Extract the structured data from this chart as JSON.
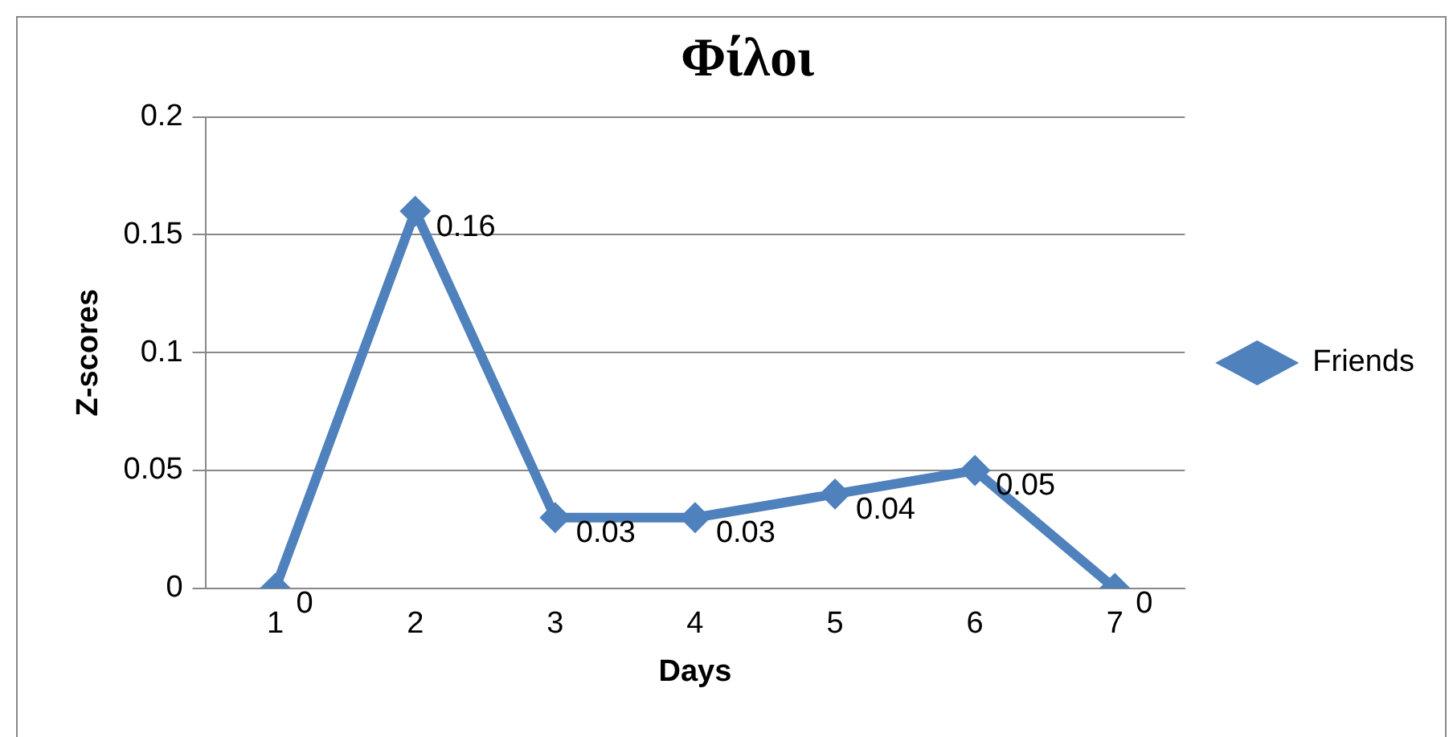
{
  "chart_data": {
    "type": "line",
    "title": "Φίλοι",
    "xlabel": "Days",
    "ylabel": "Z-scores",
    "categories": [
      "1",
      "2",
      "3",
      "4",
      "5",
      "6",
      "7"
    ],
    "series": [
      {
        "name": "Friends",
        "color": "#4f81bd",
        "values": [
          0,
          0.16,
          0.03,
          0.03,
          0.04,
          0.05,
          0
        ]
      }
    ],
    "ylim": [
      0,
      0.2
    ],
    "yticks": [
      0,
      0.05,
      0.1,
      0.15,
      0.2
    ],
    "grid": "y",
    "legend": "right",
    "marker": "diamond",
    "line_style": "solid",
    "data_labels": true
  }
}
